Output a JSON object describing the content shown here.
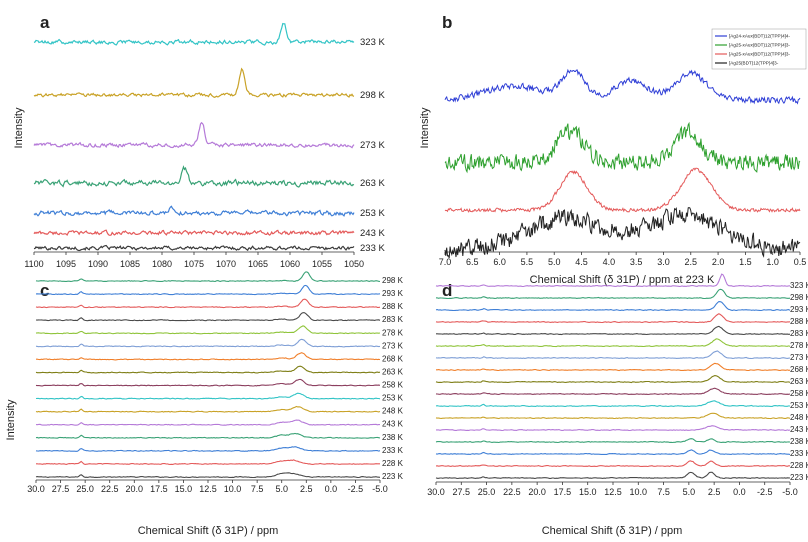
{
  "chart_data": [
    {
      "panel": "a",
      "type": "line",
      "ylabel": "Intensity",
      "xlabel": "",
      "xlim": [
        1100,
        1050
      ],
      "x_ticks": [
        "1100",
        "1095",
        "1090",
        "1085",
        "1080",
        "1075",
        "1070",
        "1065",
        "1060",
        "1055",
        "1050"
      ],
      "series": [
        {
          "name": "233 K",
          "color": "#3a3a3a",
          "peak": 1080,
          "noise": 0.55,
          "peak_h": 0
        },
        {
          "name": "243 K",
          "color": "#e45a5a",
          "peak": 1080,
          "noise": 0.6,
          "peak_h": 1
        },
        {
          "name": "253 K",
          "color": "#3f7fd6",
          "peak": 1078.5,
          "noise": 0.7,
          "peak_h": 6
        },
        {
          "name": "263 K",
          "color": "#3aa276",
          "peak": 1076.5,
          "noise": 0.8,
          "peak_h": 14
        },
        {
          "name": "273 K",
          "color": "#b57ad8",
          "peak": 1073.8,
          "noise": 0.6,
          "peak_h": 22
        },
        {
          "name": "298 K",
          "color": "#c9a227",
          "peak": 1067.5,
          "noise": 0.5,
          "peak_h": 26
        },
        {
          "name": "323 K",
          "color": "#33c4c6",
          "peak": 1061,
          "noise": 0.6,
          "peak_h": 20
        }
      ]
    },
    {
      "panel": "b",
      "type": "line",
      "xlabel": "Chemical Shift (δ 31P) / ppm at 223 K",
      "ylabel": "Intensity",
      "xlim": [
        7.0,
        0.5
      ],
      "x_ticks": [
        "7.0",
        "6.5",
        "6.0",
        "5.5",
        "5.0",
        "4.5",
        "4.0",
        "3.5",
        "3.0",
        "2.5",
        "2.0",
        "1.5",
        "1.0",
        "0.5"
      ],
      "series": [
        {
          "name": "[Ag24-xAux(BDT)12(TPP)4]4-",
          "color": "#2f3fd6",
          "peaks": [
            [
              5.75,
              0.5,
              14
            ],
            [
              4.65,
              0.22,
              28
            ],
            [
              3.6,
              0.3,
              20
            ],
            [
              2.5,
              0.28,
              27
            ]
          ],
          "noise": 1.3
        },
        {
          "name": "[Ag25-xAux(BDT)12(TPP)4]3-",
          "color": "#2ea02e",
          "peaks": [
            [
              4.7,
              0.25,
              30
            ],
            [
              2.55,
              0.25,
              30
            ]
          ],
          "noise": 3.5
        },
        {
          "name": "[Ag25-xAux(BDT)12(TPP)4]3-",
          "color": "#e45a5a",
          "peaks": [
            [
              4.65,
              0.25,
              38
            ],
            [
              2.4,
              0.28,
              40
            ]
          ],
          "noise": 0.8
        },
        {
          "name": "[Ag25(BDT)12(TPP)4]3-",
          "color": "#222222",
          "peaks": [
            [
              4.8,
              0.7,
              32
            ],
            [
              2.6,
              0.7,
              34
            ]
          ],
          "noise": 4.0
        }
      ]
    },
    {
      "panel": "c",
      "type": "line",
      "xlabel": "Chemical Shift (δ 31P) / ppm",
      "ylabel": "Intensity",
      "xlim": [
        30,
        -5
      ],
      "x_ticks": [
        "30.0",
        "27.5",
        "25.0",
        "22.5",
        "20.0",
        "17.5",
        "15.0",
        "12.5",
        "10.0",
        "7.5",
        "5.0",
        "2.5",
        "0.0",
        "-2.5",
        "-5.0"
      ],
      "series": [
        {
          "name": "223 K",
          "color": "#4a4a4a"
        },
        {
          "name": "228 K",
          "color": "#e45a5a"
        },
        {
          "name": "233 K",
          "color": "#3f7fd6"
        },
        {
          "name": "238 K",
          "color": "#3aa276"
        },
        {
          "name": "243 K",
          "color": "#b57ad8"
        },
        {
          "name": "248 K",
          "color": "#c9a227"
        },
        {
          "name": "253 K",
          "color": "#33c4c6"
        },
        {
          "name": "258 K",
          "color": "#8c3f5f"
        },
        {
          "name": "263 K",
          "color": "#7f7f17"
        },
        {
          "name": "268 K",
          "color": "#f07f2a"
        },
        {
          "name": "273 K",
          "color": "#7f9fd6"
        },
        {
          "name": "278 K",
          "color": "#8fc43a"
        },
        {
          "name": "283 K",
          "color": "#4a4a4a"
        },
        {
          "name": "288 K",
          "color": "#e45a5a"
        },
        {
          "name": "293 K",
          "color": "#3f7fd6"
        },
        {
          "name": "298 K",
          "color": "#3aa276"
        }
      ]
    },
    {
      "panel": "d",
      "type": "line",
      "xlabel": "Chemical Shift (δ 31P) / ppm",
      "ylabel": "",
      "xlim": [
        30,
        -5
      ],
      "x_ticks": [
        "30.0",
        "27.5",
        "25.0",
        "22.5",
        "20.0",
        "17.5",
        "15.0",
        "12.5",
        "10.0",
        "7.5",
        "5.0",
        "2.5",
        "0.0",
        "-2.5",
        "-5.0"
      ],
      "series": [
        {
          "name": "223 K",
          "color": "#4a4a4a"
        },
        {
          "name": "228 K",
          "color": "#e45a5a"
        },
        {
          "name": "233 K",
          "color": "#3f7fd6"
        },
        {
          "name": "238 K",
          "color": "#3aa276"
        },
        {
          "name": "243 K",
          "color": "#b57ad8"
        },
        {
          "name": "248 K",
          "color": "#c9a227"
        },
        {
          "name": "253 K",
          "color": "#33c4c6"
        },
        {
          "name": "258 K",
          "color": "#8c3f5f"
        },
        {
          "name": "263 K",
          "color": "#7f7f17"
        },
        {
          "name": "268 K",
          "color": "#f07f2a"
        },
        {
          "name": "273 K",
          "color": "#7f9fd6"
        },
        {
          "name": "278 K",
          "color": "#8fc43a"
        },
        {
          "name": "283 K",
          "color": "#4a4a4a"
        },
        {
          "name": "288 K",
          "color": "#e45a5a"
        },
        {
          "name": "293 K",
          "color": "#3f7fd6"
        },
        {
          "name": "298 K",
          "color": "#3aa276"
        },
        {
          "name": "323 K",
          "color": "#b57ad8"
        }
      ]
    }
  ]
}
